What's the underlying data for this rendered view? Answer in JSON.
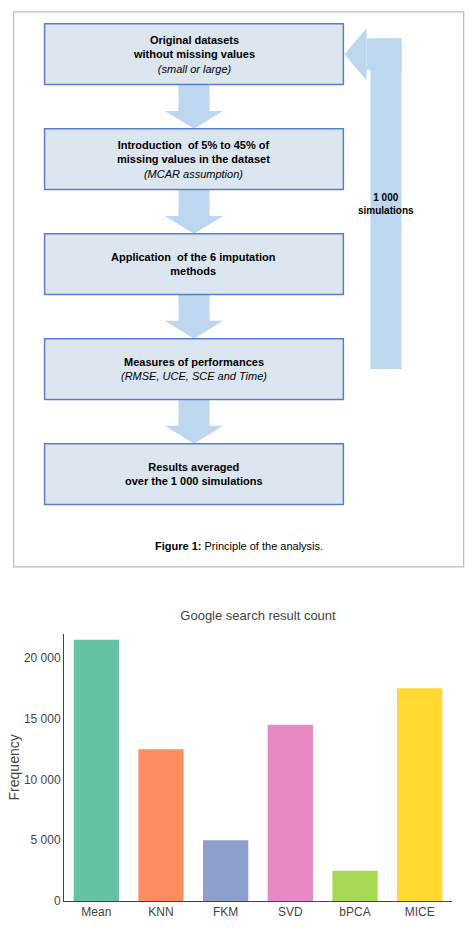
{
  "chart_data": {
    "type": "bar",
    "title": "Google search result count",
    "ylabel": "Frequency",
    "categories": [
      "Mean",
      "KNN",
      "FKM",
      "SVD",
      "bPCA",
      "MICE"
    ],
    "values": [
      21500,
      12500,
      5000,
      14500,
      2500,
      17500
    ],
    "colors": [
      "#66c2a5",
      "#fc8d62",
      "#8da0cb",
      "#e78ac3",
      "#a6d854",
      "#ffd92f"
    ],
    "ylim": [
      0,
      22000
    ],
    "yticks": [
      0,
      {
        "value": 5000,
        "label": "5 000"
      },
      {
        "value": 10000,
        "label": "10 000"
      },
      {
        "value": 15000,
        "label": "15 000"
      },
      {
        "value": 20000,
        "label": "20 000"
      }
    ],
    "grid": false,
    "annotations": [
      "Original datasets\nwithout missing values\n(small or large)",
      "Introduction  of 5% to 45% of\nmissing values in the dataset\n(MCAR assumption)",
      "Application  of the 6 imputation\nmethods",
      "Measures of performances\n(RMSE, UCE, SCE and Time)",
      "Results averaged\nover the 1 000 simulations",
      "1 000\nsimulations",
      "Figure 1: Principle of the analysis."
    ]
  }
}
